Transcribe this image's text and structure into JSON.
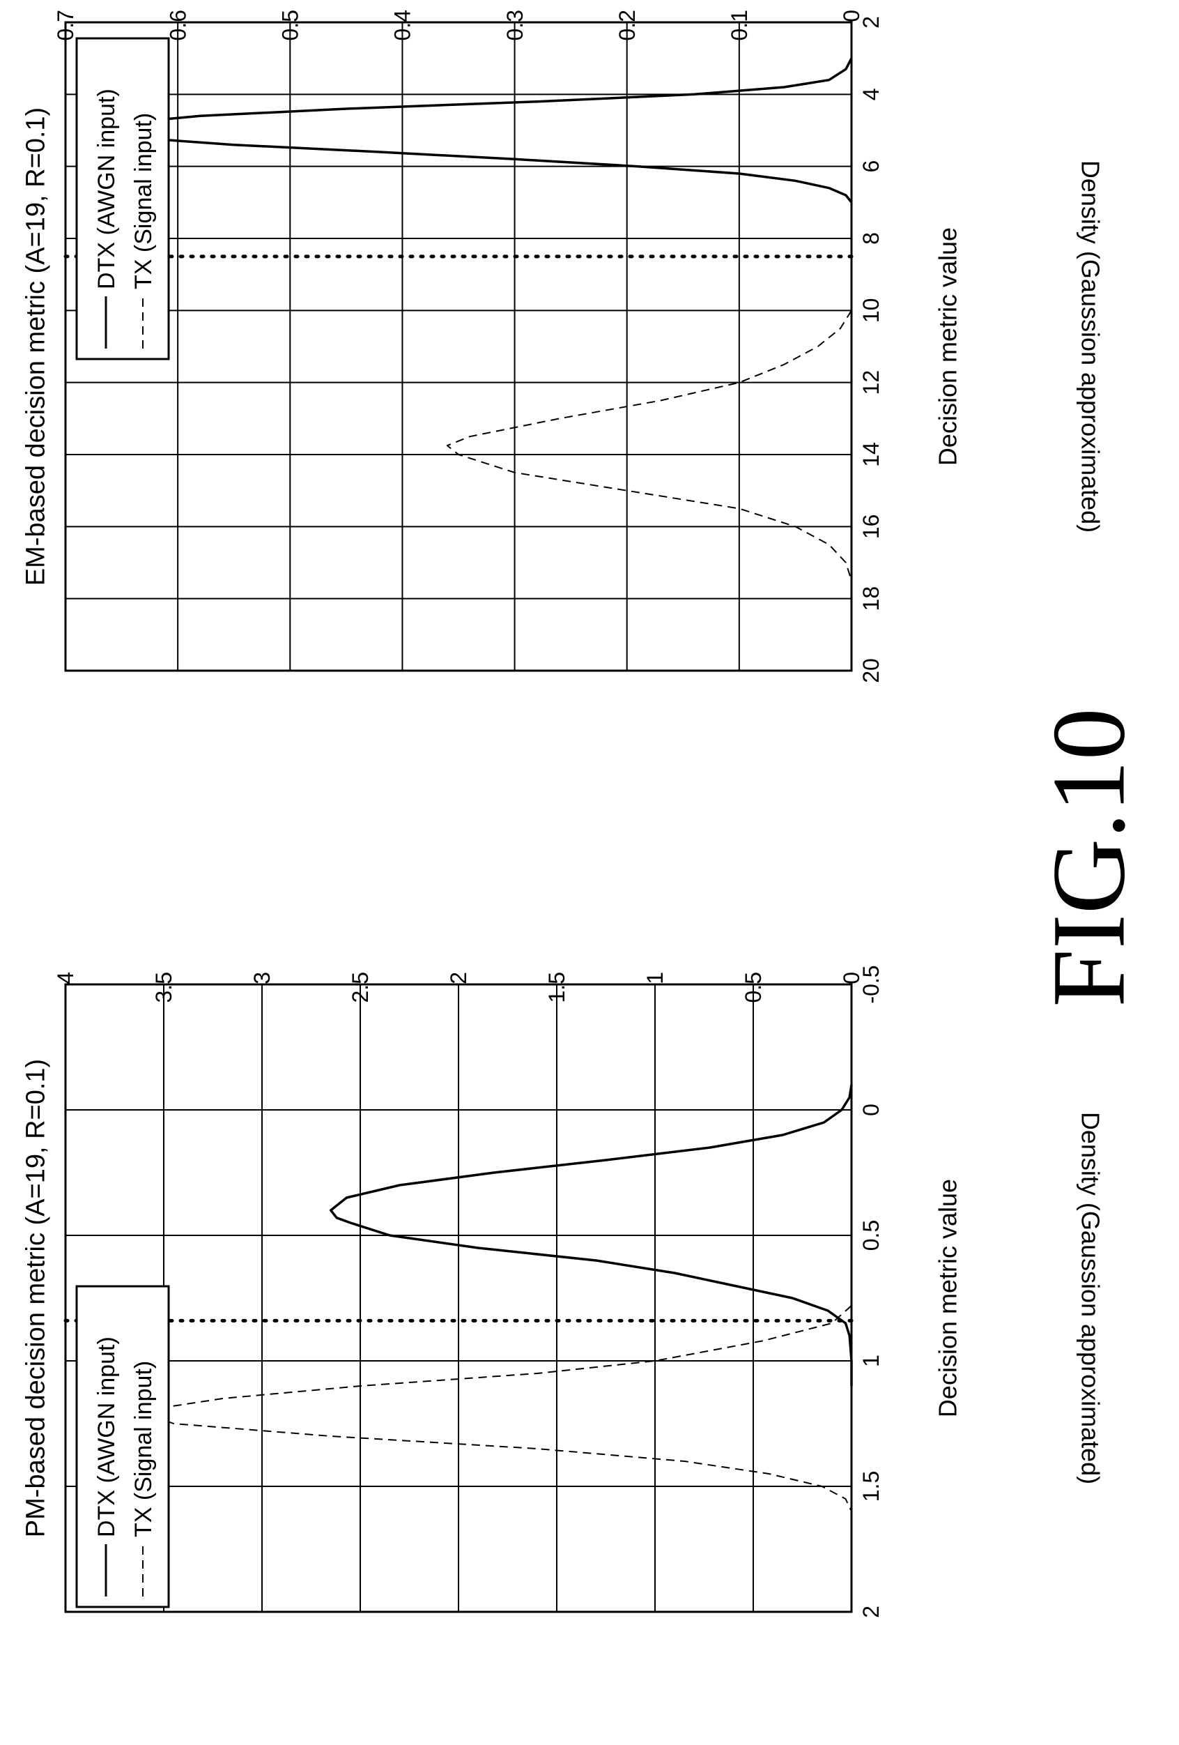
{
  "figure_label": "FIG.10",
  "chart_data": [
    {
      "type": "line",
      "title": "PM-based decision metric (A=19, R=0.1)",
      "xlabel": "Decision metric value",
      "ylabel": "Density (Gaussion approximated)",
      "xlim": [
        -0.5,
        2
      ],
      "ylim": [
        0,
        4
      ],
      "xticks": [
        "-0.5",
        "0",
        "0.5",
        "1",
        "1.5",
        "2"
      ],
      "yticks": [
        "0",
        "0.5",
        "1",
        "1.5",
        "2",
        "2.5",
        "3",
        "3.5",
        "4"
      ],
      "grid": true,
      "legend_position": "top-left",
      "threshold_x": 0.84,
      "series": [
        {
          "name": "DTX (AWGN input)",
          "style": "solid",
          "x": [
            -0.1,
            -0.05,
            0.0,
            0.05,
            0.1,
            0.15,
            0.2,
            0.25,
            0.3,
            0.35,
            0.4,
            0.43,
            0.45,
            0.5,
            0.55,
            0.6,
            0.65,
            0.7,
            0.75,
            0.8,
            0.85,
            0.9,
            1.0,
            1.1
          ],
          "y": [
            0.0,
            0.01,
            0.05,
            0.14,
            0.35,
            0.72,
            1.25,
            1.82,
            2.3,
            2.57,
            2.65,
            2.62,
            2.55,
            2.35,
            1.9,
            1.3,
            0.9,
            0.6,
            0.3,
            0.12,
            0.03,
            0.01,
            0.0,
            0.0
          ]
        },
        {
          "name": "TX (Signal input)",
          "style": "dashed",
          "x": [
            0.78,
            0.85,
            0.92,
            1.0,
            1.05,
            1.1,
            1.15,
            1.2,
            1.25,
            1.3,
            1.35,
            1.4,
            1.45,
            1.5,
            1.55,
            1.6
          ],
          "y": [
            0.0,
            0.1,
            0.45,
            1.0,
            1.6,
            2.5,
            3.2,
            3.62,
            3.45,
            2.65,
            1.6,
            0.85,
            0.42,
            0.15,
            0.03,
            0.0
          ]
        }
      ]
    },
    {
      "type": "line",
      "title": "EM-based decision metric (A=19, R=0.1)",
      "xlabel": "Decision metric value",
      "ylabel": "Density (Gaussion approximated)",
      "xlim": [
        2,
        20
      ],
      "ylim": [
        0,
        0.7
      ],
      "xticks": [
        "2",
        "4",
        "6",
        "8",
        "10",
        "12",
        "14",
        "16",
        "18",
        "20"
      ],
      "yticks": [
        "0",
        "0.1",
        "0.2",
        "0.3",
        "0.4",
        "0.5",
        "0.6",
        "0.7"
      ],
      "grid": true,
      "legend_position": "top-left",
      "threshold_x": 8.5,
      "series": [
        {
          "name": "DTX (AWGN input)",
          "style": "solid",
          "x": [
            3.0,
            3.3,
            3.6,
            3.8,
            4.0,
            4.2,
            4.4,
            4.6,
            4.8,
            5.0,
            5.2,
            5.4,
            5.6,
            5.8,
            6.0,
            6.2,
            6.4,
            6.6,
            6.8,
            7.0
          ],
          "y": [
            0.0,
            0.005,
            0.02,
            0.06,
            0.14,
            0.28,
            0.45,
            0.58,
            0.65,
            0.67,
            0.64,
            0.55,
            0.42,
            0.3,
            0.19,
            0.1,
            0.05,
            0.02,
            0.005,
            0.0
          ]
        },
        {
          "name": "TX (Signal input)",
          "style": "dashed",
          "x": [
            10.0,
            10.5,
            11.0,
            11.5,
            12.0,
            12.5,
            13.0,
            13.5,
            13.75,
            14.0,
            14.5,
            15.0,
            15.5,
            16.0,
            16.5,
            17.0,
            17.5
          ],
          "y": [
            0.0,
            0.01,
            0.03,
            0.06,
            0.1,
            0.17,
            0.26,
            0.34,
            0.36,
            0.35,
            0.3,
            0.2,
            0.1,
            0.05,
            0.02,
            0.005,
            0.0
          ]
        }
      ]
    }
  ]
}
